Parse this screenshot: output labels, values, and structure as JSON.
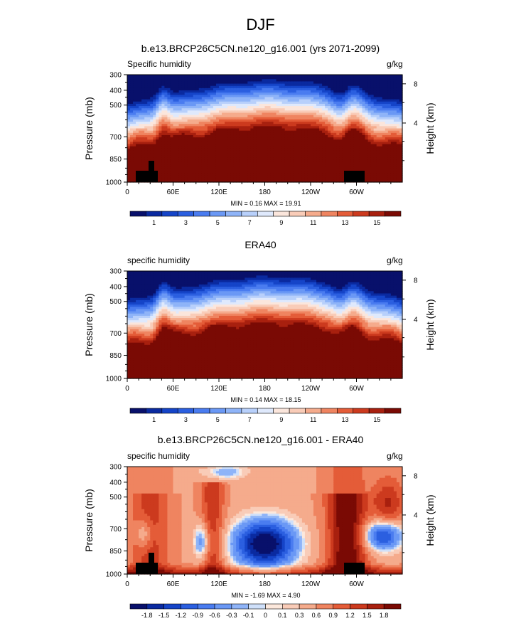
{
  "figure": {
    "title": "DJF"
  },
  "colors": {
    "humidity": [
      "#08106b",
      "#0a2aa0",
      "#1544c8",
      "#2b5fe0",
      "#4a7cf0",
      "#6a98f5",
      "#8fb4f8",
      "#b8d0fb",
      "#dfe9fc",
      "#fbe6dc",
      "#f9ccb8",
      "#f5ab8c",
      "#ef8460",
      "#e45c38",
      "#cc3a1e",
      "#a8200f",
      "#7a0a04"
    ],
    "difference": [
      "#08106b",
      "#0a2aa0",
      "#1544c8",
      "#2b5fe0",
      "#4a7cf0",
      "#6a98f5",
      "#8fb4f8",
      "#cfe0fa",
      "#fce8dc",
      "#f9ccb8",
      "#f5ab8c",
      "#ef8460",
      "#e45c38",
      "#cc3a1e",
      "#a8200f",
      "#7a0a04"
    ]
  },
  "panels": [
    {
      "title": "b.e13.BRCP26C5CN.ne120_g16.001 (yrs 2071-2099)",
      "label_left": "Specific humidity",
      "label_right": "g/kg",
      "minmax": "MIN =  0.16  MAX =  19.91",
      "colorbar_labels": [
        "1",
        "3",
        "5",
        "7",
        "9",
        "11",
        "13",
        "15"
      ],
      "palette": "humidity",
      "kind": "humidity",
      "topography": true
    },
    {
      "title": "ERA40",
      "label_left": "specific humidity",
      "label_right": "g/kg",
      "minmax": "MIN =  0.14  MAX =  18.15",
      "colorbar_labels": [
        "1",
        "3",
        "5",
        "7",
        "9",
        "11",
        "13",
        "15"
      ],
      "palette": "humidity",
      "kind": "humidity",
      "topography": false
    },
    {
      "title": "b.e13.BRCP26C5CN.ne120_g16.001 - ERA40",
      "label_left": "specific humidity",
      "label_right": "g/kg",
      "minmax": "MIN = -1.69  MAX =  4.90",
      "colorbar_labels": [
        "-1.8",
        "-1.5",
        "-1.2",
        "-0.9",
        "-0.6",
        "-0.3",
        "-0.1",
        "0",
        "0.1",
        "0.3",
        "0.6",
        "0.9",
        "1.2",
        "1.5",
        "1.8"
      ],
      "palette": "difference",
      "kind": "difference",
      "topography": true
    }
  ],
  "axes": {
    "ylabel": "Pressure (mb)",
    "y2label": "Height (km)",
    "yticks": [
      "300",
      "400",
      "500",
      "700",
      "850",
      "1000"
    ],
    "y2ticks": [
      "8",
      "4"
    ],
    "xticks": [
      "0",
      "60E",
      "120E",
      "180",
      "120W",
      "60W"
    ]
  },
  "chart_data": [
    {
      "type": "heatmap",
      "title": "b.e13.BRCP26C5CN.ne120_g16.001 (yrs 2071-2099)",
      "variable": "Specific humidity",
      "units": "g/kg",
      "xlabel": "",
      "ylabel": "Pressure (mb)",
      "y2label": "Height (km)",
      "x_ticks": [
        "0",
        "60E",
        "120E",
        "180",
        "120W",
        "60W"
      ],
      "y_ticks": [
        300,
        400,
        500,
        700,
        850,
        1000
      ],
      "ylim": [
        1000,
        300
      ],
      "y_scale": "log",
      "min": 0.16,
      "max": 19.91,
      "contour_levels": [
        0,
        1,
        2,
        3,
        4,
        5,
        6,
        7,
        8,
        9,
        10,
        11,
        12,
        13,
        14,
        15,
        16
      ],
      "colorbar_labels": [
        1,
        3,
        5,
        7,
        9,
        11,
        13,
        15
      ]
    },
    {
      "type": "heatmap",
      "title": "ERA40",
      "variable": "specific humidity",
      "units": "g/kg",
      "xlabel": "",
      "ylabel": "Pressure (mb)",
      "y2label": "Height (km)",
      "x_ticks": [
        "0",
        "60E",
        "120E",
        "180",
        "120W",
        "60W"
      ],
      "y_ticks": [
        300,
        400,
        500,
        700,
        850,
        1000
      ],
      "ylim": [
        1000,
        300
      ],
      "y_scale": "log",
      "min": 0.14,
      "max": 18.15,
      "contour_levels": [
        0,
        1,
        2,
        3,
        4,
        5,
        6,
        7,
        8,
        9,
        10,
        11,
        12,
        13,
        14,
        15,
        16
      ],
      "colorbar_labels": [
        1,
        3,
        5,
        7,
        9,
        11,
        13,
        15
      ]
    },
    {
      "type": "heatmap",
      "title": "b.e13.BRCP26C5CN.ne120_g16.001 - ERA40",
      "variable": "specific humidity",
      "units": "g/kg",
      "xlabel": "",
      "ylabel": "Pressure (mb)",
      "y2label": "Height (km)",
      "x_ticks": [
        "0",
        "60E",
        "120E",
        "180",
        "120W",
        "60W"
      ],
      "y_ticks": [
        300,
        400,
        500,
        700,
        850,
        1000
      ],
      "ylim": [
        1000,
        300
      ],
      "y_scale": "log",
      "min": -1.69,
      "max": 4.9,
      "contour_levels": [
        -1.8,
        -1.5,
        -1.2,
        -0.9,
        -0.6,
        -0.3,
        -0.1,
        0,
        0.1,
        0.3,
        0.6,
        0.9,
        1.2,
        1.5,
        1.8
      ],
      "colorbar_labels": [
        -1.8,
        -1.5,
        -1.2,
        -0.9,
        -0.6,
        -0.3,
        -0.1,
        0,
        0.1,
        0.3,
        0.6,
        0.9,
        1.2,
        1.5,
        1.8
      ]
    }
  ]
}
